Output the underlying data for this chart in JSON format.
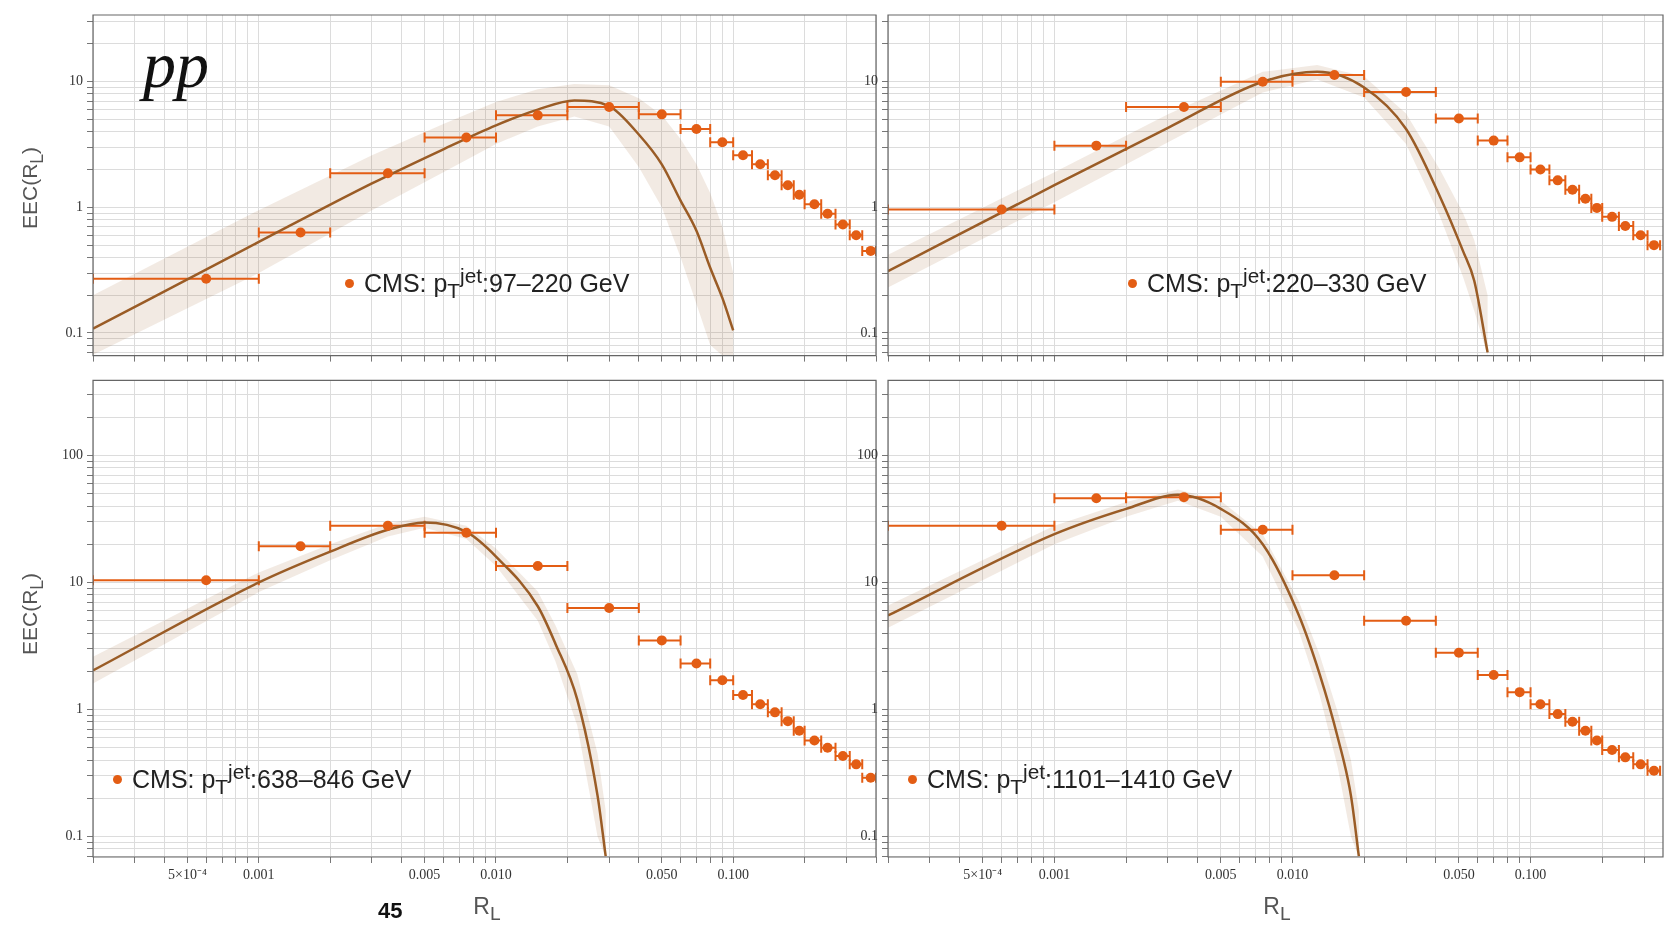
{
  "chart_data": [
    {
      "type": "scatter",
      "ylabel": "EEC(R$_{L}$)",
      "annotations": [
        "pp"
      ],
      "log": "xy",
      "grid": true,
      "legend": "bottom",
      "tick_labels": "y",
      "xlim": [
        0.0002,
        0.4
      ],
      "ylim": [
        0.066,
        34
      ],
      "xticks": [
        {
          "value": 0.0002,
          "label": null
        },
        {
          "value": 0.0003,
          "label": null
        },
        {
          "value": 0.0004,
          "label": null
        },
        {
          "value": 0.0005,
          "label": null
        },
        {
          "value": 0.0006,
          "label": null
        },
        {
          "value": 0.0007,
          "label": null
        },
        {
          "value": 0.0008,
          "label": null
        },
        {
          "value": 0.0009,
          "label": null
        },
        {
          "value": 0.001,
          "label": null
        },
        {
          "value": 0.002,
          "label": null
        },
        {
          "value": 0.003,
          "label": null
        },
        {
          "value": 0.004,
          "label": null
        },
        {
          "value": 0.005,
          "label": null
        },
        {
          "value": 0.006,
          "label": null
        },
        {
          "value": 0.007,
          "label": null
        },
        {
          "value": 0.008,
          "label": null
        },
        {
          "value": 0.009,
          "label": null
        },
        {
          "value": 0.01,
          "label": null
        },
        {
          "value": 0.02,
          "label": null
        },
        {
          "value": 0.03,
          "label": null
        },
        {
          "value": 0.04,
          "label": null
        },
        {
          "value": 0.05,
          "label": null
        },
        {
          "value": 0.06,
          "label": null
        },
        {
          "value": 0.07,
          "label": null
        },
        {
          "value": 0.08,
          "label": null
        },
        {
          "value": 0.09,
          "label": null
        },
        {
          "value": 0.1,
          "label": null
        },
        {
          "value": 0.2,
          "label": null
        },
        {
          "value": 0.3,
          "label": null
        },
        {
          "value": 0.4,
          "label": null
        }
      ],
      "yticks": [
        {
          "value": 0.07,
          "label": null
        },
        {
          "value": 0.08,
          "label": null
        },
        {
          "value": 0.09,
          "label": null
        },
        0.1,
        {
          "value": 0.2,
          "label": null
        },
        {
          "value": 0.3,
          "label": null
        },
        {
          "value": 0.4,
          "label": null
        },
        {
          "value": 0.5,
          "label": null
        },
        {
          "value": 0.6,
          "label": null
        },
        {
          "value": 0.7,
          "label": null
        },
        {
          "value": 0.8,
          "label": null
        },
        {
          "value": 0.9,
          "label": null
        },
        1,
        {
          "value": 2,
          "label": null
        },
        {
          "value": 3,
          "label": null
        },
        {
          "value": 4,
          "label": null
        },
        {
          "value": 5,
          "label": null
        },
        {
          "value": 6,
          "label": null
        },
        {
          "value": 7,
          "label": null
        },
        {
          "value": 8,
          "label": null
        },
        {
          "value": 9,
          "label": null
        },
        10,
        {
          "value": 20,
          "label": null
        },
        {
          "value": 30,
          "label": null
        }
      ],
      "series": [
        {
          "type": "line",
          "color": "#9a5c26",
          "x": [
            0.0002,
            0.001,
            0.003,
            0.006,
            0.01,
            0.015,
            0.0214,
            0.03,
            0.04,
            0.05,
            0.06,
            0.07,
            0.08,
            0.09,
            0.1
          ],
          "values": [
            0.108,
            0.53,
            1.55,
            2.9,
            4.5,
            6.0,
            7.1,
            6.4,
            3.8,
            2.2,
            1.13,
            0.65,
            0.33,
            0.19,
            0.105
          ],
          "lower": [
            0.067,
            0.3,
            0.95,
            1.9,
            3.2,
            4.4,
            5.3,
            4.4,
            2.1,
            1.0,
            0.4,
            0.17,
            0.08,
            0.066,
            0.066
          ],
          "upper": [
            0.2,
            0.95,
            2.6,
            4.6,
            6.9,
            8.7,
            9.6,
            9.4,
            7.4,
            5.4,
            3.5,
            2.2,
            1.3,
            0.7,
            0.3
          ]
        },
        {
          "marker": "circle",
          "name": "CMS: p$_{T}$$^{jet}$:97–220 GeV",
          "color": "#e35d14",
          "x": [
            0.0006,
            0.0015,
            0.0035,
            0.0075,
            0.015,
            0.03,
            0.05,
            0.07,
            0.09,
            0.11,
            0.13,
            0.15,
            0.17,
            0.19,
            0.22,
            0.25,
            0.29,
            0.33,
            0.38
          ],
          "values": [
            0.27,
            0.63,
            1.87,
            3.6,
            5.4,
            6.3,
            5.5,
            4.2,
            3.3,
            2.6,
            2.2,
            1.8,
            1.5,
            1.26,
            1.06,
            0.89,
            0.73,
            0.6,
            0.45
          ],
          "xerrors": [
            [
              0.0002,
              0.001
            ],
            [
              0.001,
              0.002
            ],
            [
              0.002,
              0.005
            ],
            [
              0.005,
              0.01
            ],
            [
              0.01,
              0.02
            ],
            [
              0.02,
              0.04
            ],
            [
              0.04,
              0.06
            ],
            [
              0.06,
              0.08
            ],
            [
              0.08,
              0.1
            ],
            [
              0.1,
              0.12
            ],
            [
              0.12,
              0.14
            ],
            [
              0.14,
              0.16
            ],
            [
              0.16,
              0.18
            ],
            [
              0.18,
              0.2
            ],
            [
              0.2,
              0.235
            ],
            [
              0.235,
              0.27
            ],
            [
              0.27,
              0.31
            ],
            [
              0.31,
              0.35
            ],
            [
              0.35,
              0.4
            ]
          ]
        }
      ]
    },
    {
      "type": "scatter",
      "log": "xy",
      "grid": true,
      "legend": "bottom",
      "tick_labels": "y",
      "xlim": [
        0.0002,
        0.36
      ],
      "ylim": [
        0.066,
        34
      ],
      "xticks": [
        {
          "value": 0.0002,
          "label": null
        },
        {
          "value": 0.0003,
          "label": null
        },
        {
          "value": 0.0004,
          "label": null
        },
        {
          "value": 0.0005,
          "label": null
        },
        {
          "value": 0.0006,
          "label": null
        },
        {
          "value": 0.0007,
          "label": null
        },
        {
          "value": 0.0008,
          "label": null
        },
        {
          "value": 0.0009,
          "label": null
        },
        {
          "value": 0.001,
          "label": null
        },
        {
          "value": 0.002,
          "label": null
        },
        {
          "value": 0.003,
          "label": null
        },
        {
          "value": 0.004,
          "label": null
        },
        {
          "value": 0.005,
          "label": null
        },
        {
          "value": 0.006,
          "label": null
        },
        {
          "value": 0.007,
          "label": null
        },
        {
          "value": 0.008,
          "label": null
        },
        {
          "value": 0.009,
          "label": null
        },
        {
          "value": 0.01,
          "label": null
        },
        {
          "value": 0.02,
          "label": null
        },
        {
          "value": 0.03,
          "label": null
        },
        {
          "value": 0.04,
          "label": null
        },
        {
          "value": 0.05,
          "label": null
        },
        {
          "value": 0.06,
          "label": null
        },
        {
          "value": 0.07,
          "label": null
        },
        {
          "value": 0.08,
          "label": null
        },
        {
          "value": 0.09,
          "label": null
        },
        {
          "value": 0.1,
          "label": null
        },
        {
          "value": 0.2,
          "label": null
        },
        {
          "value": 0.3,
          "label": null
        }
      ],
      "yticks": [
        {
          "value": 0.07,
          "label": null
        },
        {
          "value": 0.08,
          "label": null
        },
        {
          "value": 0.09,
          "label": null
        },
        0.1,
        {
          "value": 0.2,
          "label": null
        },
        {
          "value": 0.3,
          "label": null
        },
        {
          "value": 0.4,
          "label": null
        },
        {
          "value": 0.5,
          "label": null
        },
        {
          "value": 0.6,
          "label": null
        },
        {
          "value": 0.7,
          "label": null
        },
        {
          "value": 0.8,
          "label": null
        },
        {
          "value": 0.9,
          "label": null
        },
        1,
        {
          "value": 2,
          "label": null
        },
        {
          "value": 3,
          "label": null
        },
        {
          "value": 4,
          "label": null
        },
        {
          "value": 5,
          "label": null
        },
        {
          "value": 6,
          "label": null
        },
        {
          "value": 7,
          "label": null
        },
        {
          "value": 8,
          "label": null
        },
        {
          "value": 9,
          "label": null
        },
        10,
        {
          "value": 20,
          "label": null
        },
        {
          "value": 30,
          "label": null
        }
      ],
      "series": [
        {
          "type": "line",
          "color": "#9a5c26",
          "x": [
            0.0002,
            0.001,
            0.003,
            0.0075,
            0.0127,
            0.02,
            0.03,
            0.0416,
            0.052,
            0.058,
            0.066
          ],
          "values": [
            0.31,
            1.5,
            4.3,
            10,
            12,
            9,
            4.2,
            1.22,
            0.45,
            0.26,
            0.07
          ],
          "lower": [
            0.23,
            1.1,
            3.3,
            8.2,
            10.4,
            7.5,
            3.2,
            0.85,
            0.28,
            0.15,
            0.066
          ],
          "upper": [
            0.42,
            1.9,
            5.5,
            12,
            13.6,
            11,
            5.6,
            2.0,
            0.9,
            0.55,
            0.2
          ]
        },
        {
          "marker": "circle",
          "name": "CMS: p$_{T}$$^{jet}$:220–330 GeV",
          "color": "#e35d14",
          "x": [
            0.0006,
            0.0015,
            0.0035,
            0.0075,
            0.015,
            0.03,
            0.05,
            0.07,
            0.09,
            0.11,
            0.13,
            0.15,
            0.17,
            0.19,
            0.22,
            0.25,
            0.29,
            0.33
          ],
          "values": [
            0.96,
            3.1,
            6.3,
            10,
            11.3,
            8.3,
            5.1,
            3.4,
            2.5,
            2.0,
            1.64,
            1.38,
            1.17,
            0.99,
            0.84,
            0.71,
            0.6,
            0.5
          ],
          "xerrors": [
            [
              0.0002,
              0.001
            ],
            [
              0.001,
              0.002
            ],
            [
              0.002,
              0.005
            ],
            [
              0.005,
              0.01
            ],
            [
              0.01,
              0.02
            ],
            [
              0.02,
              0.04
            ],
            [
              0.04,
              0.06
            ],
            [
              0.06,
              0.08
            ],
            [
              0.08,
              0.1
            ],
            [
              0.1,
              0.12
            ],
            [
              0.12,
              0.14
            ],
            [
              0.14,
              0.16
            ],
            [
              0.16,
              0.18
            ],
            [
              0.18,
              0.2
            ],
            [
              0.2,
              0.235
            ],
            [
              0.235,
              0.27
            ],
            [
              0.27,
              0.31
            ],
            [
              0.31,
              0.35
            ]
          ]
        }
      ]
    },
    {
      "type": "scatter",
      "xlabel": "R$_{L}$",
      "ylabel": "EEC(R$_{L}$)",
      "annotations": [
        "45"
      ],
      "log": "xy",
      "grid": true,
      "legend": "bottom left",
      "xlim": [
        0.0002,
        0.4
      ],
      "ylim": [
        0.069,
        390
      ],
      "xticks": [
        {
          "value": 0.0002,
          "label": null
        },
        {
          "value": 0.0003,
          "label": null
        },
        {
          "value": 0.0004,
          "label": null
        },
        {
          "value": 0.0005,
          "label": "5×10⁻⁴"
        },
        {
          "value": 0.0006,
          "label": null
        },
        {
          "value": 0.0007,
          "label": null
        },
        {
          "value": 0.0008,
          "label": null
        },
        {
          "value": 0.0009,
          "label": null
        },
        {
          "value": 0.001,
          "label": "0.001"
        },
        {
          "value": 0.002,
          "label": null
        },
        {
          "value": 0.003,
          "label": null
        },
        {
          "value": 0.004,
          "label": null
        },
        {
          "value": 0.005,
          "label": "0.005"
        },
        {
          "value": 0.006,
          "label": null
        },
        {
          "value": 0.007,
          "label": null
        },
        {
          "value": 0.008,
          "label": null
        },
        {
          "value": 0.009,
          "label": null
        },
        {
          "value": 0.01,
          "label": "0.010"
        },
        {
          "value": 0.02,
          "label": null
        },
        {
          "value": 0.03,
          "label": null
        },
        {
          "value": 0.04,
          "label": null
        },
        {
          "value": 0.05,
          "label": "0.050"
        },
        {
          "value": 0.06,
          "label": null
        },
        {
          "value": 0.07,
          "label": null
        },
        {
          "value": 0.08,
          "label": null
        },
        {
          "value": 0.09,
          "label": null
        },
        {
          "value": 0.1,
          "label": "0.100"
        },
        {
          "value": 0.2,
          "label": null
        },
        {
          "value": 0.3,
          "label": null
        },
        {
          "value": 0.4,
          "label": null
        }
      ],
      "yticks": [
        {
          "value": 0.07,
          "label": null
        },
        {
          "value": 0.08,
          "label": null
        },
        {
          "value": 0.09,
          "label": null
        },
        0.1,
        {
          "value": 0.2,
          "label": null
        },
        {
          "value": 0.3,
          "label": null
        },
        {
          "value": 0.4,
          "label": null
        },
        {
          "value": 0.5,
          "label": null
        },
        {
          "value": 0.6,
          "label": null
        },
        {
          "value": 0.7,
          "label": null
        },
        {
          "value": 0.8,
          "label": null
        },
        {
          "value": 0.9,
          "label": null
        },
        1,
        {
          "value": 2,
          "label": null
        },
        {
          "value": 3,
          "label": null
        },
        {
          "value": 4,
          "label": null
        },
        {
          "value": 5,
          "label": null
        },
        {
          "value": 6,
          "label": null
        },
        {
          "value": 7,
          "label": null
        },
        {
          "value": 8,
          "label": null
        },
        {
          "value": 9,
          "label": null
        },
        10,
        {
          "value": 20,
          "label": null
        },
        {
          "value": 30,
          "label": null
        },
        {
          "value": 40,
          "label": null
        },
        {
          "value": 50,
          "label": null
        },
        {
          "value": 60,
          "label": null
        },
        {
          "value": 70,
          "label": null
        },
        {
          "value": 80,
          "label": null
        },
        {
          "value": 90,
          "label": null
        },
        100,
        {
          "value": 200,
          "label": null
        },
        {
          "value": 300,
          "label": null
        }
      ],
      "series": [
        {
          "type": "line",
          "color": "#9a5c26",
          "x": [
            0.0002,
            0.001,
            0.002,
            0.0035,
            0.005,
            0.0075,
            0.01,
            0.015,
            0.0178,
            0.022,
            0.0268,
            0.029
          ],
          "values": [
            2.03,
            10,
            17.5,
            26,
            29.7,
            25,
            16,
            6.5,
            3.3,
            1.2,
            0.21,
            0.07
          ],
          "lower": [
            1.6,
            8.4,
            15,
            23,
            27,
            22,
            13.5,
            5,
            2.4,
            0.75,
            0.1,
            0.069
          ],
          "upper": [
            2.6,
            12,
            20,
            29,
            33,
            28,
            18.5,
            8.5,
            4.6,
            1.9,
            0.45,
            0.16
          ]
        },
        {
          "marker": "circle",
          "name": "CMS: p$_{T}$$^{jet}$:638–846 GeV",
          "color": "#e35d14",
          "x": [
            0.0006,
            0.0015,
            0.0035,
            0.0075,
            0.015,
            0.03,
            0.05,
            0.07,
            0.09,
            0.11,
            0.13,
            0.15,
            0.17,
            0.19,
            0.22,
            0.25,
            0.29,
            0.33,
            0.38
          ],
          "values": [
            10.4,
            19.3,
            28,
            24.6,
            13.5,
            6.3,
            3.5,
            2.3,
            1.7,
            1.3,
            1.1,
            0.95,
            0.81,
            0.68,
            0.57,
            0.5,
            0.43,
            0.37,
            0.29
          ],
          "xerrors": [
            [
              0.0002,
              0.001
            ],
            [
              0.001,
              0.002
            ],
            [
              0.002,
              0.005
            ],
            [
              0.005,
              0.01
            ],
            [
              0.01,
              0.02
            ],
            [
              0.02,
              0.04
            ],
            [
              0.04,
              0.06
            ],
            [
              0.06,
              0.08
            ],
            [
              0.08,
              0.1
            ],
            [
              0.1,
              0.12
            ],
            [
              0.12,
              0.14
            ],
            [
              0.14,
              0.16
            ],
            [
              0.16,
              0.18
            ],
            [
              0.18,
              0.2
            ],
            [
              0.2,
              0.235
            ],
            [
              0.235,
              0.27
            ],
            [
              0.27,
              0.31
            ],
            [
              0.31,
              0.35
            ],
            [
              0.35,
              0.4
            ]
          ]
        }
      ]
    },
    {
      "type": "scatter",
      "xlabel": "R$_{L}$",
      "log": "xy",
      "grid": true,
      "legend": "bottom left",
      "xlim": [
        0.0002,
        0.36
      ],
      "ylim": [
        0.069,
        390
      ],
      "xticks": [
        {
          "value": 0.0002,
          "label": null
        },
        {
          "value": 0.0003,
          "label": null
        },
        {
          "value": 0.0004,
          "label": null
        },
        {
          "value": 0.0005,
          "label": "5×10⁻⁴"
        },
        {
          "value": 0.0006,
          "label": null
        },
        {
          "value": 0.0007,
          "label": null
        },
        {
          "value": 0.0008,
          "label": null
        },
        {
          "value": 0.0009,
          "label": null
        },
        {
          "value": 0.001,
          "label": "0.001"
        },
        {
          "value": 0.002,
          "label": null
        },
        {
          "value": 0.003,
          "label": null
        },
        {
          "value": 0.004,
          "label": null
        },
        {
          "value": 0.005,
          "label": "0.005"
        },
        {
          "value": 0.006,
          "label": null
        },
        {
          "value": 0.007,
          "label": null
        },
        {
          "value": 0.008,
          "label": null
        },
        {
          "value": 0.009,
          "label": null
        },
        {
          "value": 0.01,
          "label": "0.010"
        },
        {
          "value": 0.02,
          "label": null
        },
        {
          "value": 0.03,
          "label": null
        },
        {
          "value": 0.04,
          "label": null
        },
        {
          "value": 0.05,
          "label": "0.050"
        },
        {
          "value": 0.06,
          "label": null
        },
        {
          "value": 0.07,
          "label": null
        },
        {
          "value": 0.08,
          "label": null
        },
        {
          "value": 0.09,
          "label": null
        },
        {
          "value": 0.1,
          "label": "0.100"
        },
        {
          "value": 0.2,
          "label": null
        },
        {
          "value": 0.3,
          "label": null
        }
      ],
      "yticks": [
        {
          "value": 0.07,
          "label": null
        },
        {
          "value": 0.08,
          "label": null
        },
        {
          "value": 0.09,
          "label": null
        },
        0.1,
        {
          "value": 0.2,
          "label": null
        },
        {
          "value": 0.3,
          "label": null
        },
        {
          "value": 0.4,
          "label": null
        },
        {
          "value": 0.5,
          "label": null
        },
        {
          "value": 0.6,
          "label": null
        },
        {
          "value": 0.7,
          "label": null
        },
        {
          "value": 0.8,
          "label": null
        },
        {
          "value": 0.9,
          "label": null
        },
        1,
        {
          "value": 2,
          "label": null
        },
        {
          "value": 3,
          "label": null
        },
        {
          "value": 4,
          "label": null
        },
        {
          "value": 5,
          "label": null
        },
        {
          "value": 6,
          "label": null
        },
        {
          "value": 7,
          "label": null
        },
        {
          "value": 8,
          "label": null
        },
        {
          "value": 9,
          "label": null
        },
        10,
        {
          "value": 20,
          "label": null
        },
        {
          "value": 30,
          "label": null
        },
        {
          "value": 40,
          "label": null
        },
        {
          "value": 50,
          "label": null
        },
        {
          "value": 60,
          "label": null
        },
        {
          "value": 70,
          "label": null
        },
        {
          "value": 80,
          "label": null
        },
        {
          "value": 90,
          "label": null
        },
        100,
        {
          "value": 200,
          "label": null
        },
        {
          "value": 300,
          "label": null
        }
      ],
      "series": [
        {
          "type": "line",
          "color": "#9a5c26",
          "x": [
            0.0002,
            0.001,
            0.002,
            0.0033,
            0.005,
            0.0075,
            0.0106,
            0.013,
            0.0155,
            0.0176,
            0.019
          ],
          "values": [
            5.5,
            24,
            38,
            49,
            38,
            20,
            5.6,
            1.9,
            0.6,
            0.21,
            0.07
          ],
          "lower": [
            4.4,
            20,
            33,
            44,
            33,
            16,
            4.2,
            1.3,
            0.35,
            0.1,
            0.069
          ],
          "upper": [
            6.6,
            28,
            43,
            54,
            44,
            24,
            7.2,
            2.7,
            0.95,
            0.4,
            0.16
          ]
        },
        {
          "marker": "circle",
          "name": "CMS: p$_{T}$$^{jet}$:1101–1410 GeV",
          "color": "#e35d14",
          "x": [
            0.0006,
            0.0015,
            0.0035,
            0.0075,
            0.015,
            0.03,
            0.05,
            0.07,
            0.09,
            0.11,
            0.13,
            0.15,
            0.17,
            0.19,
            0.22,
            0.25,
            0.29,
            0.33
          ],
          "values": [
            28,
            46,
            47,
            26,
            11.4,
            5,
            2.8,
            1.87,
            1.37,
            1.1,
            0.92,
            0.8,
            0.68,
            0.57,
            0.48,
            0.42,
            0.37,
            0.33
          ],
          "xerrors": [
            [
              0.0002,
              0.001
            ],
            [
              0.001,
              0.002
            ],
            [
              0.002,
              0.005
            ],
            [
              0.005,
              0.01
            ],
            [
              0.01,
              0.02
            ],
            [
              0.02,
              0.04
            ],
            [
              0.04,
              0.06
            ],
            [
              0.06,
              0.08
            ],
            [
              0.08,
              0.1
            ],
            [
              0.1,
              0.12
            ],
            [
              0.12,
              0.14
            ],
            [
              0.14,
              0.16
            ],
            [
              0.16,
              0.18
            ],
            [
              0.18,
              0.2
            ],
            [
              0.2,
              0.235
            ],
            [
              0.235,
              0.27
            ],
            [
              0.27,
              0.31
            ],
            [
              0.31,
              0.35
            ]
          ]
        }
      ]
    }
  ]
}
